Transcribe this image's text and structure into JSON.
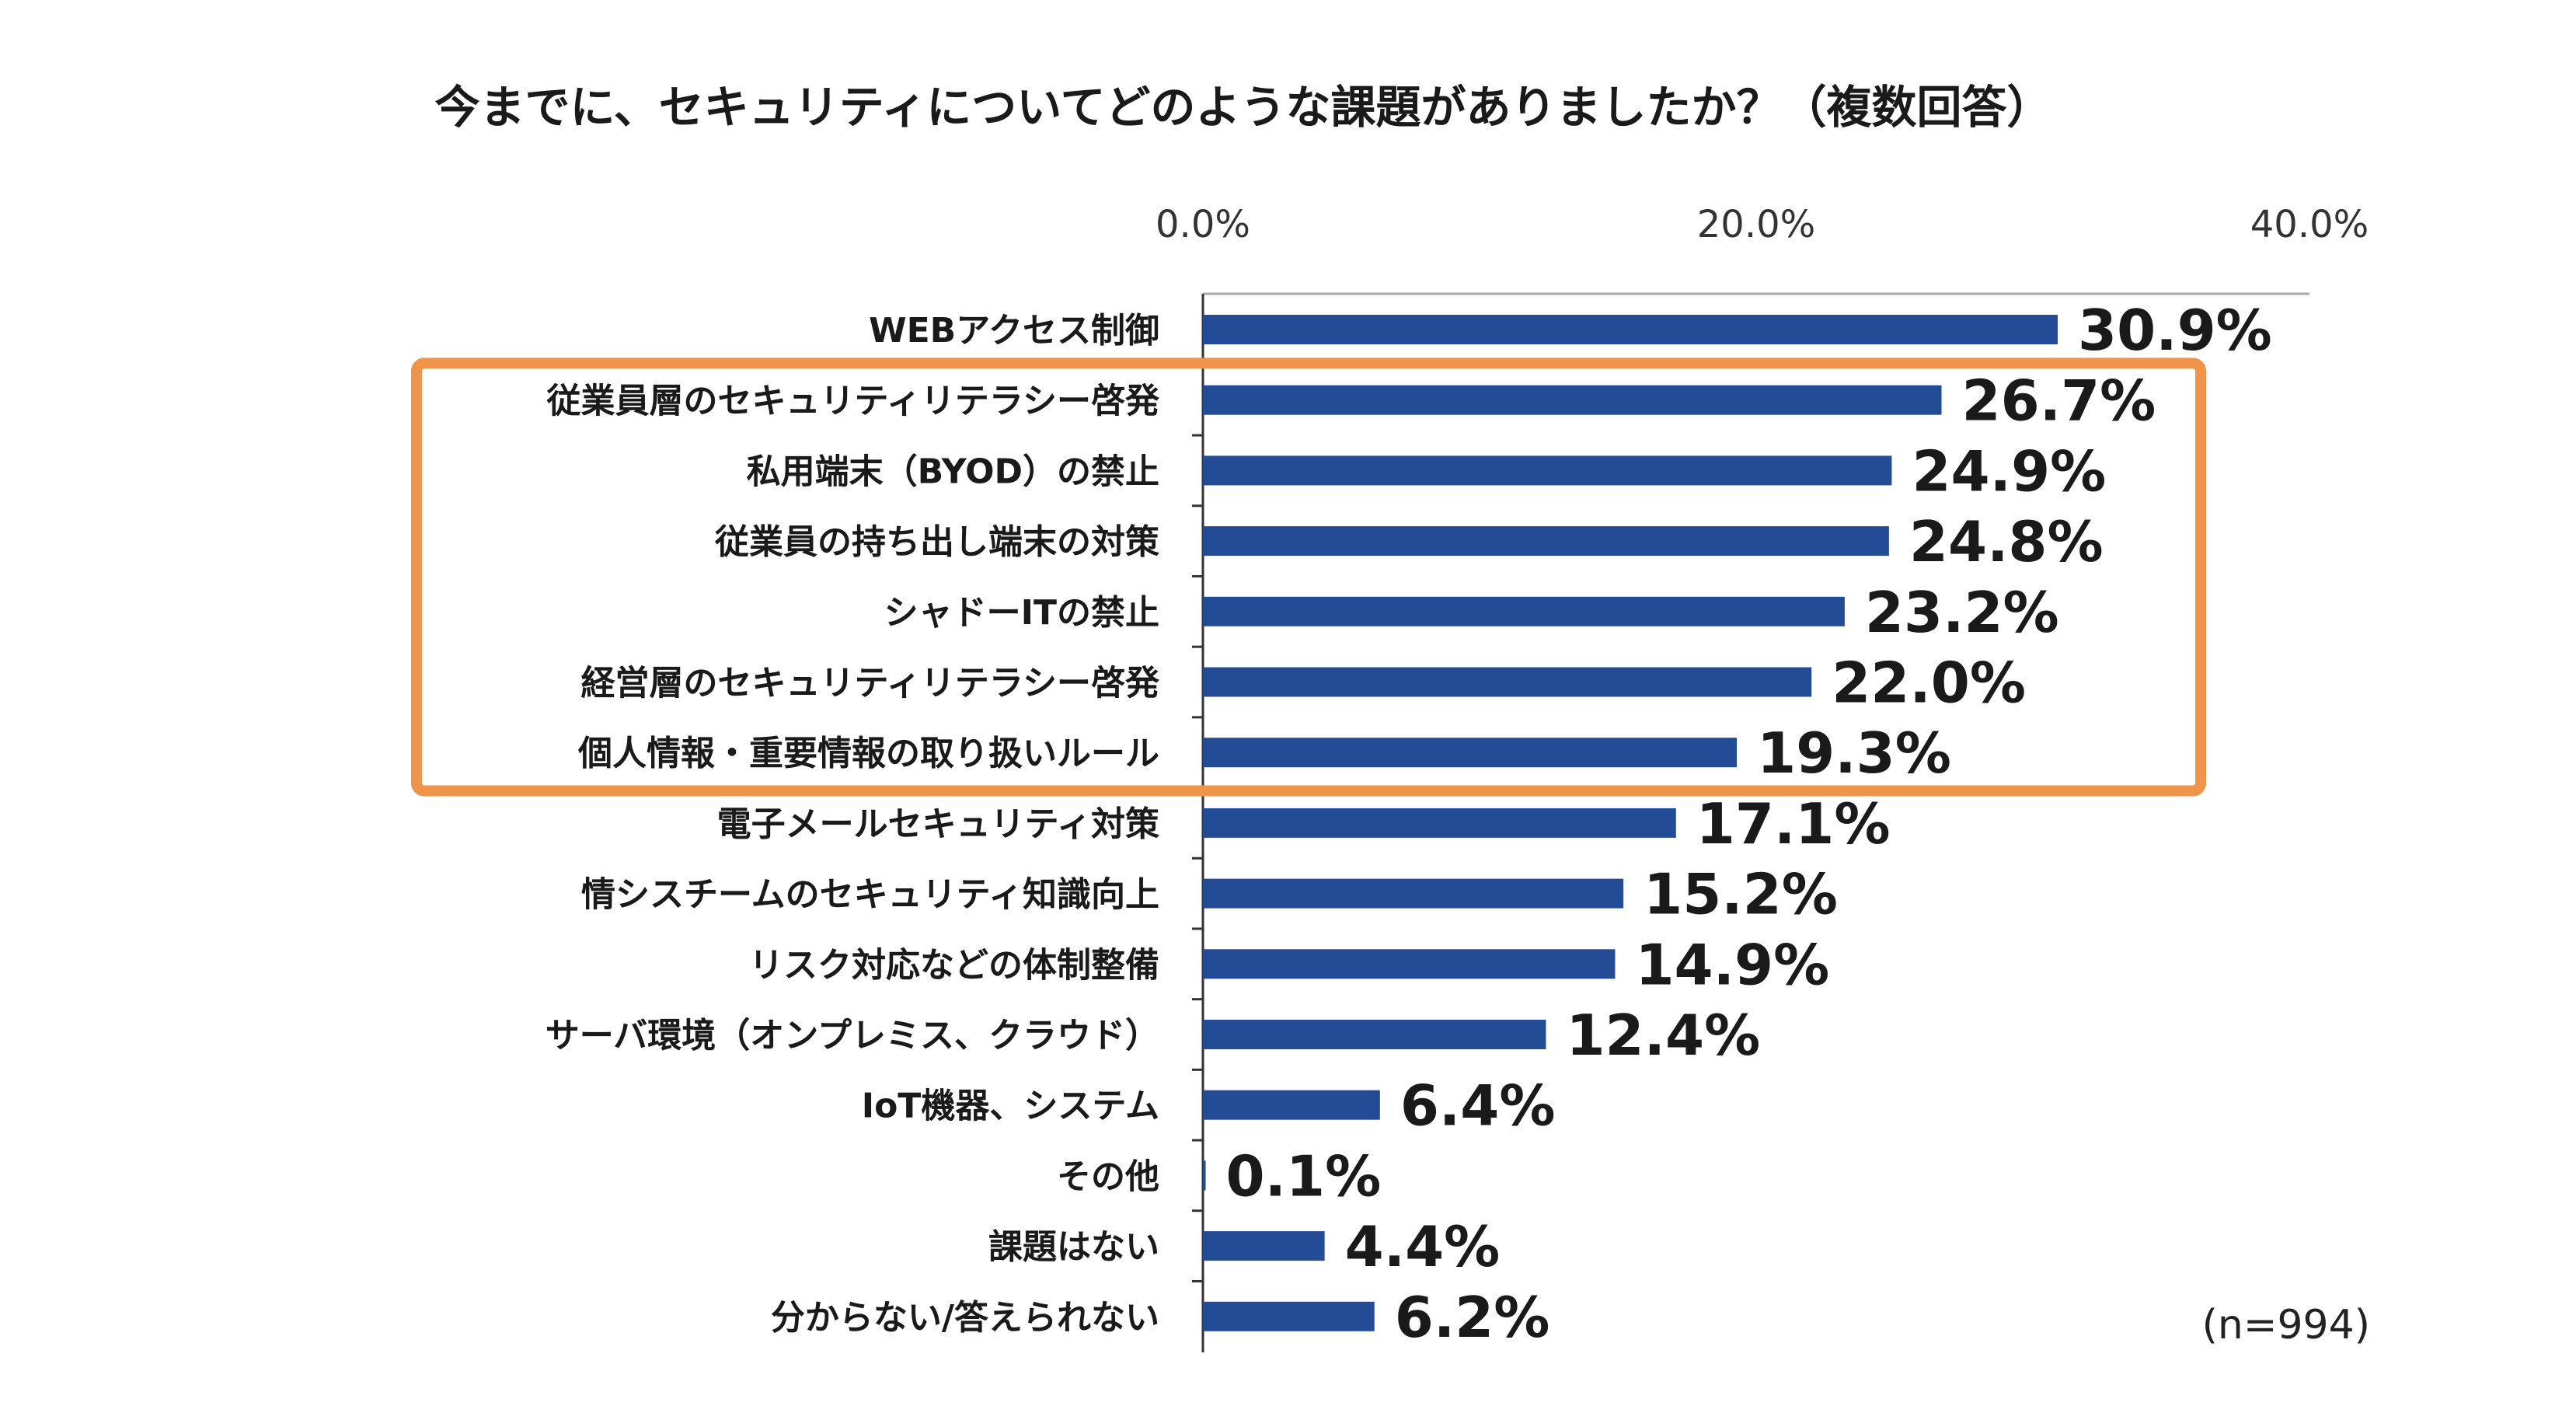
{
  "chart_data": {
    "type": "bar",
    "orientation": "horizontal",
    "title": "今までに、セキュリティについてどのような課題がありましたか？（複数回答）",
    "categories": [
      "WEBアクセス制御",
      "従業員層のセキュリティリテラシー啓発",
      "私用端末（BYOD）の禁止",
      "従業員の持ち出し端末の対策",
      "シャドーITの禁止",
      "経営層のセキュリティリテラシー啓発",
      "個人情報・重要情報の取り扱いルール",
      "電子メールセキュリティ対策",
      "情シスチームのセキュリティ知識向上",
      "リスク対応などの体制整備",
      "サーバ環境（オンプレミス、クラウド）",
      "IoT機器、システム",
      "その他",
      "課題はない",
      "分からない/答えられない"
    ],
    "values": [
      30.9,
      26.7,
      24.9,
      24.8,
      23.2,
      22.0,
      19.3,
      17.1,
      15.2,
      14.9,
      12.4,
      6.4,
      0.1,
      4.4,
      6.2
    ],
    "value_labels": [
      "30.9%",
      "26.7%",
      "24.9%",
      "24.8%",
      "23.2%",
      "22.0%",
      "19.3%",
      "17.1%",
      "15.2%",
      "14.9%",
      "12.4%",
      "6.4%",
      "0.1%",
      "4.4%",
      "6.2%"
    ],
    "xlim": [
      0,
      40
    ],
    "x_ticks": [
      "0.0%",
      "20.0%",
      "40.0%"
    ],
    "x_tick_values": [
      0,
      20,
      40
    ],
    "axis_position": "top",
    "grid": false,
    "legend": "none",
    "highlight": {
      "from_index": 1,
      "to_index": 6
    },
    "sample_note": "(n=994)"
  },
  "colors": {
    "bar": "#244c96",
    "highlight": "#f0944a",
    "axis": "#333333"
  }
}
